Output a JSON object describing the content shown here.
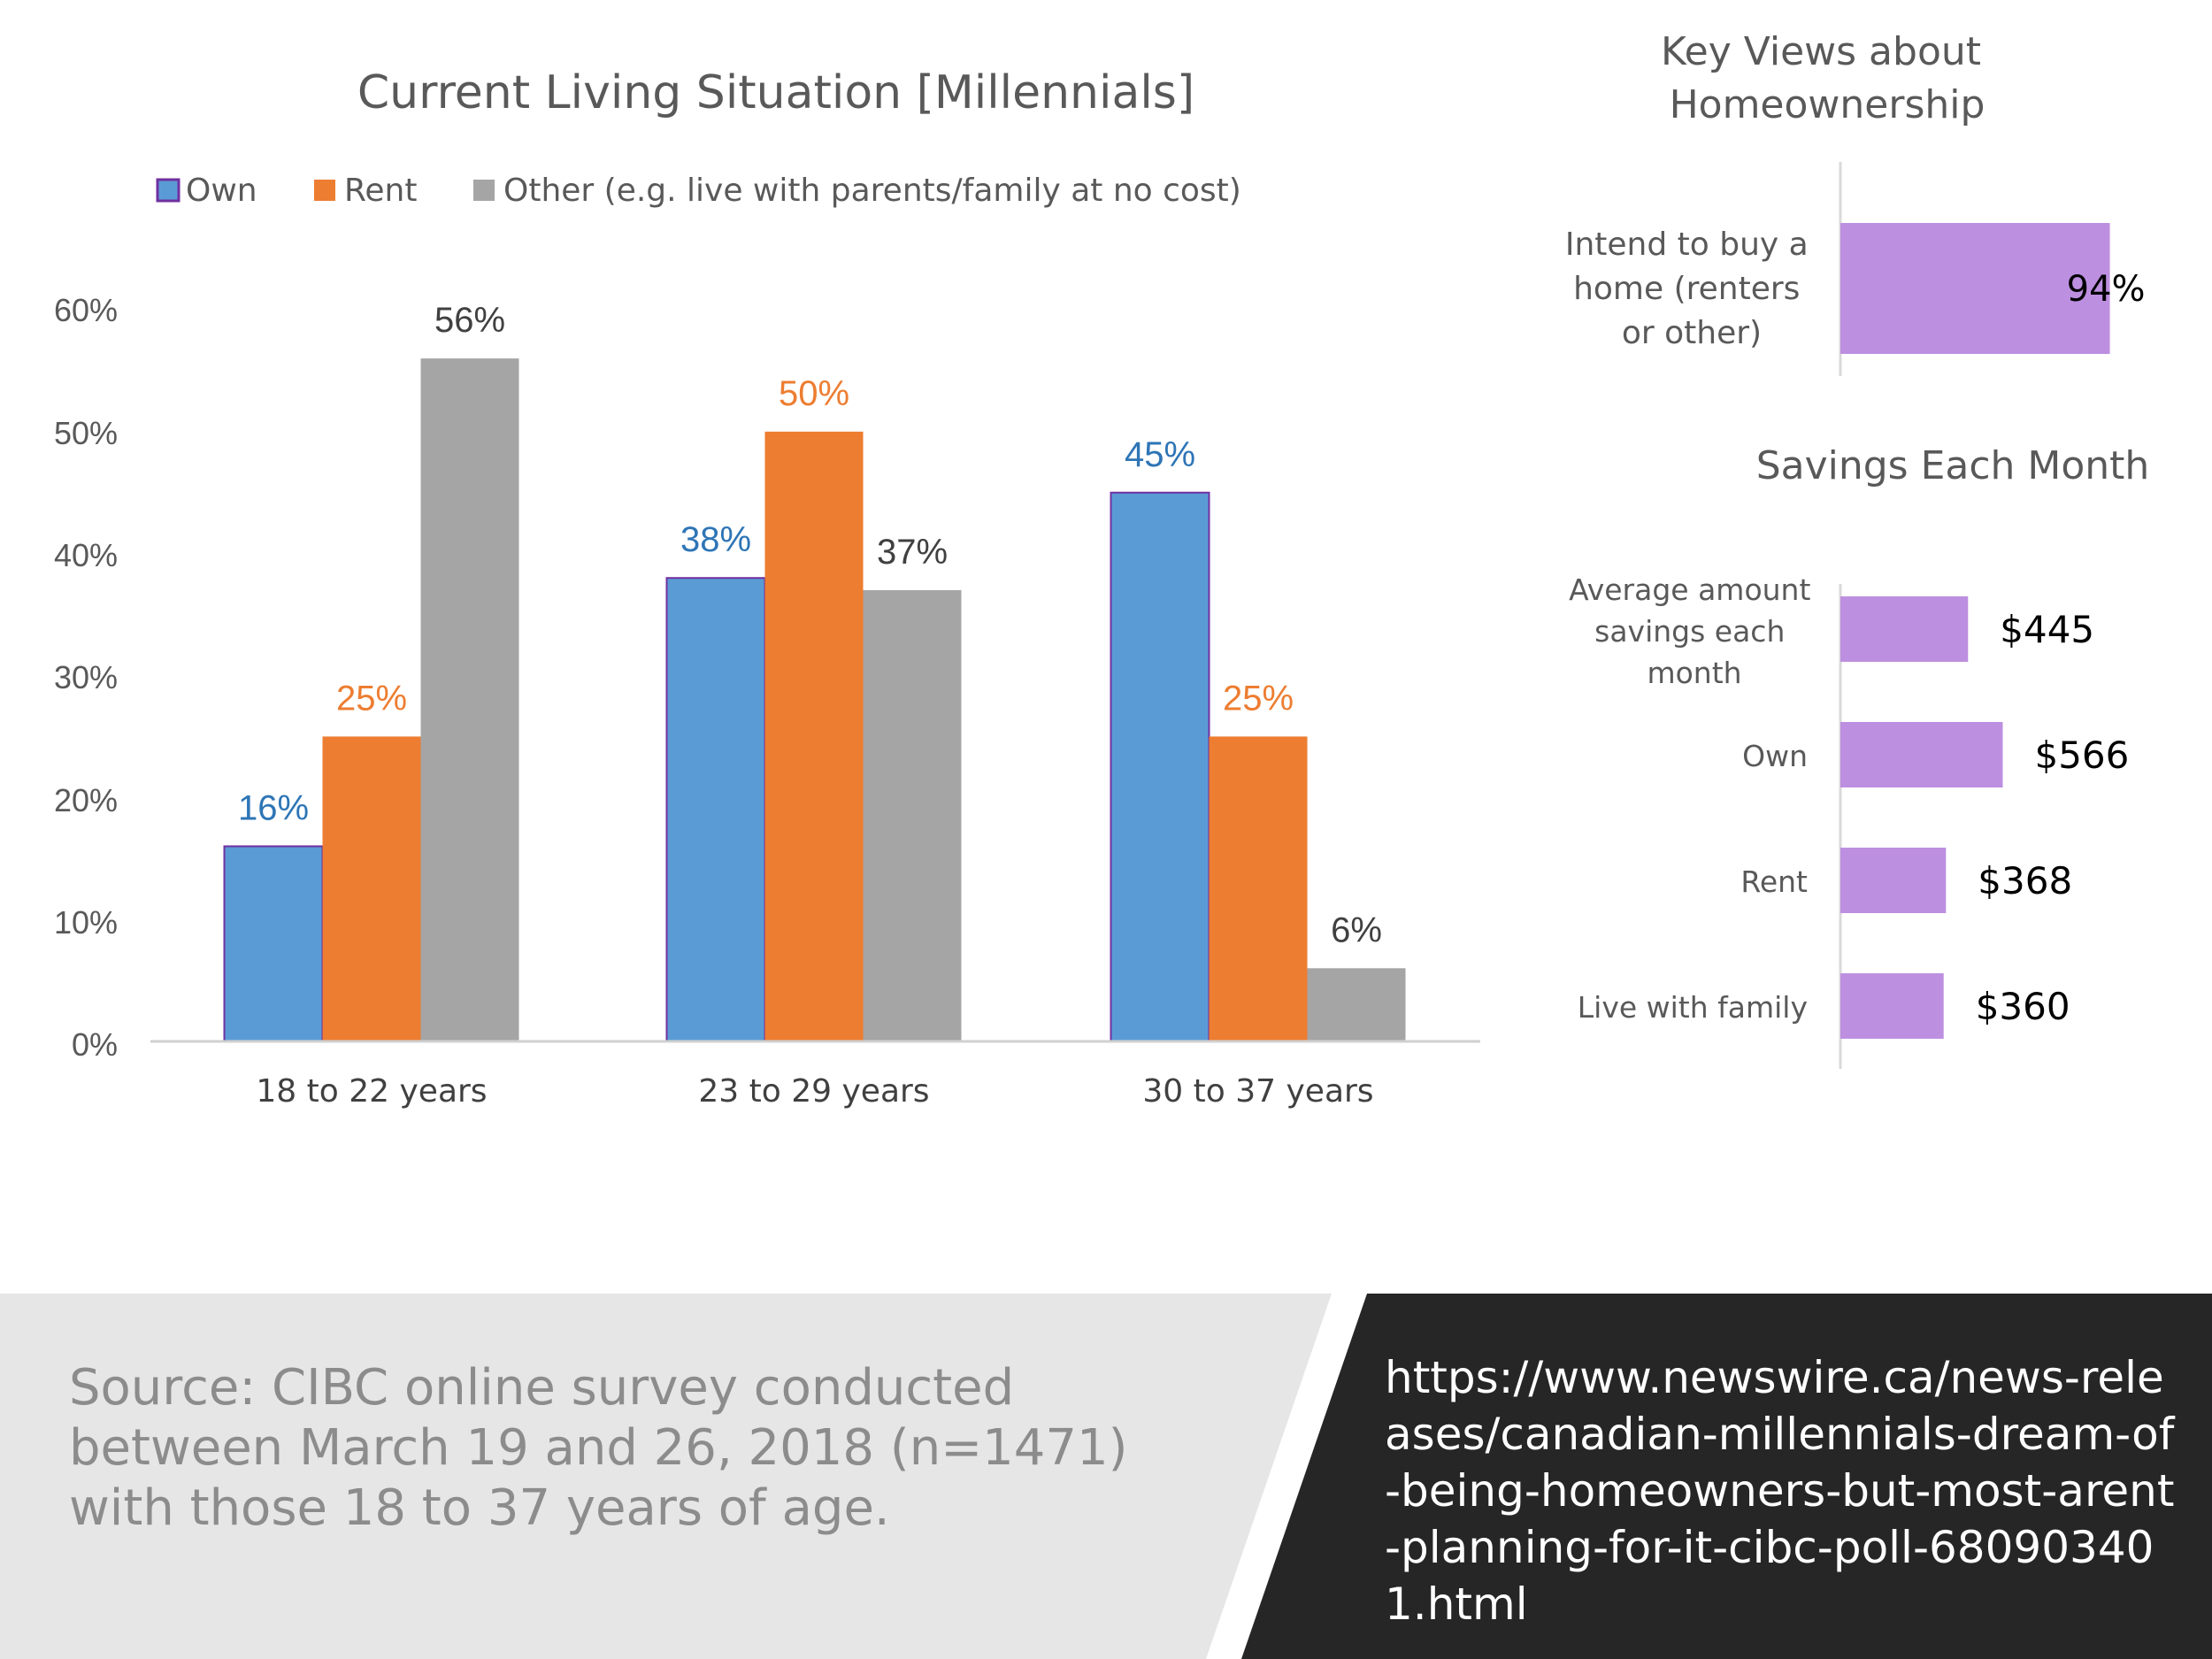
{
  "colors": {
    "own": "#5b9bd5",
    "own_border": "#7030a0",
    "rent": "#ed7d31",
    "other": "#a5a5a5",
    "purple": "#bd8fe0",
    "own_label": "#2e75b6",
    "rent_label": "#ed7d31",
    "other_label": "#404040",
    "footer_left_bg": "#e6e6e6",
    "footer_right_bg": "#262626"
  },
  "chart_data": [
    {
      "type": "bar",
      "title": "Current Living Situation [Millennials]",
      "categories": [
        "18 to 22 years",
        "23 to 29 years",
        "30 to 37 years"
      ],
      "series": [
        {
          "name": "Own",
          "values": [
            16,
            38,
            45
          ],
          "labels": [
            "16%",
            "38%",
            "45%"
          ]
        },
        {
          "name": "Rent",
          "values": [
            25,
            50,
            25
          ],
          "labels": [
            "25%",
            "50%",
            "25%"
          ]
        },
        {
          "name": "Other (e.g. live with parents/family at no cost)",
          "values": [
            56,
            37,
            6
          ],
          "labels": [
            "56%",
            "37%",
            "6%"
          ]
        }
      ],
      "yticks": [
        "0%",
        "10%",
        "20%",
        "30%",
        "40%",
        "50%",
        "60%"
      ],
      "ylim": [
        0,
        60
      ],
      "grid": false,
      "legend": "top"
    },
    {
      "type": "bar",
      "orientation": "horizontal",
      "title": "Key Views about Homeownership",
      "categories": [
        "Intend to buy a home (renters or other)"
      ],
      "values": [
        94
      ],
      "labels": [
        "94%"
      ],
      "xlim": [
        0,
        100
      ]
    },
    {
      "type": "bar",
      "orientation": "horizontal",
      "title": "Savings Each Month",
      "categories": [
        "Average amount savings each month",
        "Own",
        "Rent",
        "Live with family"
      ],
      "values": [
        445,
        566,
        368,
        360
      ],
      "labels": [
        "$445",
        "$566",
        "$368",
        "$360"
      ]
    }
  ],
  "footer": {
    "source": "Source:  CIBC online survey conducted between March 19 and 26, 2018 (n=1471) with those 18 to 37 years of age.",
    "url": "https://www.newswire.ca/news-releases/canadian-millennials-dream-of-being-homeowners-but-most-arent-planning-for-it-cibc-poll-680903401.html"
  }
}
